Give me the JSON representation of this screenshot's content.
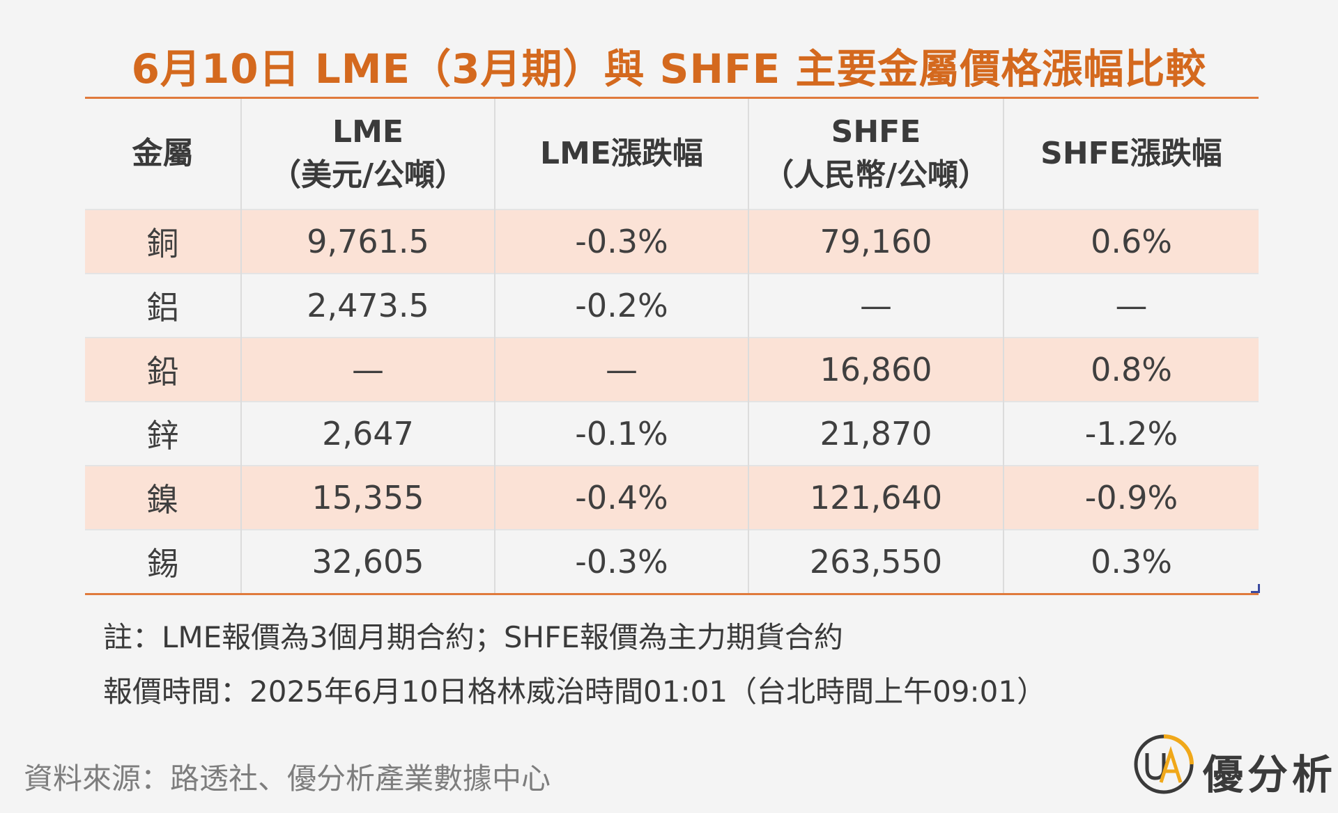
{
  "title": "6月10日 LME（3月期）與 SHFE 主要金屬價格漲幅比較",
  "chart_data": {
    "type": "table",
    "title": "6月10日 LME（3月期）與 SHFE 主要金屬價格漲幅比較",
    "columns": [
      {
        "line1": "金屬",
        "line2": ""
      },
      {
        "line1": "LME",
        "line2": "（美元/公噸）"
      },
      {
        "line1": "LME漲跌幅",
        "line2": ""
      },
      {
        "line1": "SHFE",
        "line2": "（人民幣/公噸）"
      },
      {
        "line1": "SHFE漲跌幅",
        "line2": ""
      }
    ],
    "rows": [
      [
        "銅",
        "9,761.5",
        "-0.3%",
        "79,160",
        "0.6%"
      ],
      [
        "鋁",
        "2,473.5",
        "-0.2%",
        "—",
        "—"
      ],
      [
        "鉛",
        "—",
        "—",
        "16,860",
        "0.8%"
      ],
      [
        "鋅",
        "2,647",
        "-0.1%",
        "21,870",
        "-1.2%"
      ],
      [
        "鎳",
        "15,355",
        "-0.4%",
        "121,640",
        "-0.9%"
      ],
      [
        "錫",
        "32,605",
        "-0.3%",
        "263,550",
        "0.3%"
      ]
    ],
    "row_shading": [
      true,
      false,
      true,
      false,
      true,
      false
    ]
  },
  "notes": {
    "line1": "註：LME報價為3個月期合約；SHFE報價為主力期貨合約",
    "line2": "報價時間：2025年6月10日格林威治時間01:01（台北時間上午09:01）"
  },
  "source": "資料來源：路透社、優分析產業數據中心",
  "logo": {
    "mark": "UA",
    "text": "優分析"
  },
  "colors": {
    "title": "#d4691e",
    "rule": "#e07a3c",
    "shade": "#fbe2d6",
    "background": "#f4f4f4",
    "logo_accent": "#f0a81a"
  }
}
